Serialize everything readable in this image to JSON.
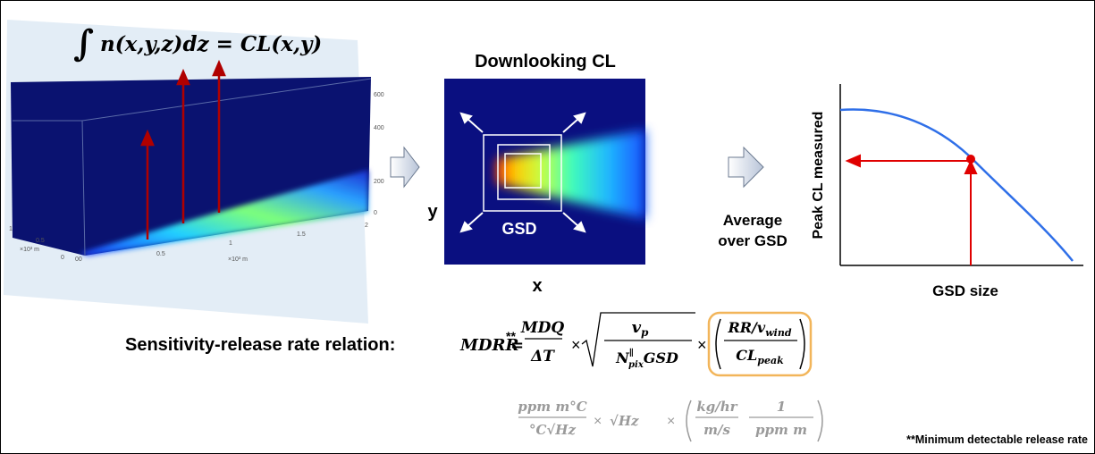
{
  "top_equation": {
    "integral": "∫",
    "expression": "n(x,y,z)dz = CL(x,y)"
  },
  "plot3d": {
    "z_ticks": [
      "600",
      "400",
      "200",
      "0"
    ],
    "x_ticks": [
      "0.5",
      "1",
      "1.5",
      "2"
    ],
    "y_ticks": [
      "1",
      "0.5",
      "0"
    ],
    "x_unit": "×10³ m",
    "y_unit": "×10³ m",
    "origin": "00"
  },
  "heatmap": {
    "title": "Downlooking CL",
    "x_label": "x",
    "y_label": "y",
    "box_label": "GSD"
  },
  "step_label": [
    "Average",
    "over GSD"
  ],
  "curve_plot": {
    "y_label": "Peak CL measured",
    "x_label": "GSD size"
  },
  "relation": {
    "label": "Sensitivity-release rate relation:",
    "lhs": "MDRR",
    "note_mark": "**",
    "equals": "=",
    "mdq": "MDQ",
    "dt": "ΔT",
    "times": "×",
    "v": "v",
    "p": "p",
    "n": "N",
    "parallel": "∥",
    "pix": "pix",
    "gsd": "GSD",
    "rr": "RR/v",
    "wind": "wind",
    "cl": "CL",
    "peak": "peak"
  },
  "units": {
    "u1_num": "ppm m°C",
    "u1_den": "°C√Hz",
    "times": "×",
    "u2": "√Hz",
    "u3_num": "kg/hr",
    "u3_den": "m/s",
    "u4_num": "1",
    "u4_den": "ppm m"
  },
  "footnote": "**Minimum detectable release rate"
}
